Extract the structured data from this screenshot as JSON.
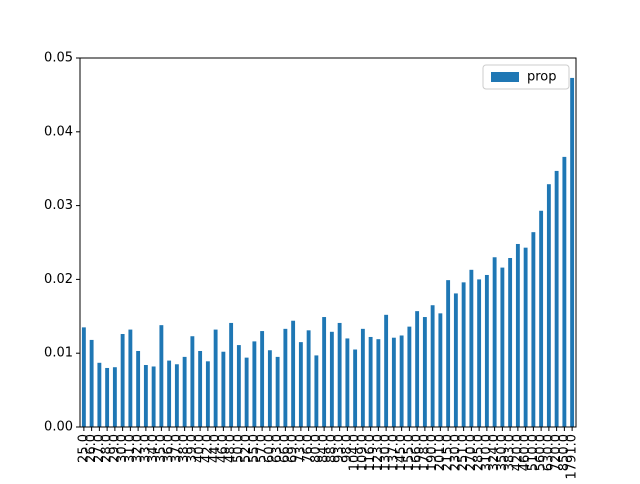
{
  "chart_data": {
    "type": "bar",
    "categories": [
      "25.0",
      "26.0",
      "27.0",
      "28.0",
      "29.0",
      "30.0",
      "31.0",
      "32.0",
      "33.0",
      "34.0",
      "35.0",
      "36.0",
      "37.0",
      "38.0",
      "39.0",
      "40.0",
      "42.0",
      "44.0",
      "46.0",
      "48.0",
      "50.0",
      "52.0",
      "55.0",
      "57.0",
      "60.0",
      "63.0",
      "66.0",
      "69.0",
      "73.0",
      "76.0",
      "80.0",
      "84.0",
      "88.0",
      "93.0",
      "98.0",
      "104.0",
      "109.0",
      "116.0",
      "123.0",
      "130.0",
      "137.0",
      "145.0",
      "155.0",
      "166.0",
      "178.0",
      "190.0",
      "201.0",
      "215.0",
      "230.0",
      "251.0",
      "270.0",
      "285.0",
      "310.0",
      "324.0",
      "350.0",
      "383.0",
      "420.0",
      "460.0",
      "510.0",
      "560.0",
      "630.0",
      "720.0",
      "850.0",
      "1791.0"
    ],
    "series": [
      {
        "name": "prop",
        "color": "#1f77b4",
        "values": [
          0.0135,
          0.0118,
          0.0087,
          0.008,
          0.0081,
          0.0126,
          0.0132,
          0.0103,
          0.0084,
          0.0082,
          0.0138,
          0.009,
          0.0085,
          0.0095,
          0.0123,
          0.0103,
          0.0089,
          0.0132,
          0.0102,
          0.0141,
          0.0111,
          0.0094,
          0.0116,
          0.013,
          0.0104,
          0.0095,
          0.0133,
          0.0144,
          0.0115,
          0.0131,
          0.0097,
          0.0149,
          0.0129,
          0.0141,
          0.012,
          0.0105,
          0.0133,
          0.0122,
          0.0119,
          0.0152,
          0.0121,
          0.0124,
          0.0136,
          0.0157,
          0.0149,
          0.0165,
          0.0154,
          0.0199,
          0.0181,
          0.0196,
          0.0213,
          0.02,
          0.0206,
          0.023,
          0.0216,
          0.0229,
          0.0248,
          0.0243,
          0.0264,
          0.0293,
          0.0329,
          0.0347,
          0.0366,
          0.0473
        ]
      }
    ],
    "ylim": [
      0,
      0.05
    ],
    "yticks": [
      {
        "value": 0,
        "label": "0.00"
      },
      {
        "value": 0.01,
        "label": "0.01"
      },
      {
        "value": 0.02,
        "label": "0.02"
      },
      {
        "value": 0.03,
        "label": "0.03"
      },
      {
        "value": 0.04,
        "label": "0.04"
      },
      {
        "value": 0.05,
        "label": "0.05"
      }
    ],
    "legend": "upper right"
  }
}
